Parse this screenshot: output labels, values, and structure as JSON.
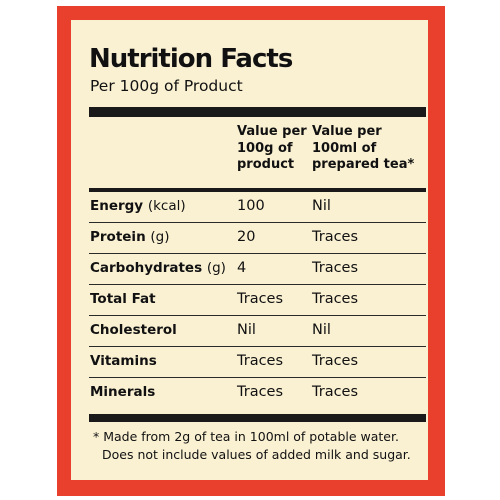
{
  "label": {
    "title": "Nutrition Facts",
    "subtitle": "Per 100g of Product",
    "columns": {
      "col1": [
        "Value per",
        "100g of",
        "product"
      ],
      "col2": [
        "Value per",
        "100ml of",
        "prepared tea*"
      ]
    },
    "rows": [
      {
        "name": "Energy",
        "unit": "(kcal)",
        "per_100g": "100",
        "per_100ml": "Nil"
      },
      {
        "name": "Protein",
        "unit": "(g)",
        "per_100g": "20",
        "per_100ml": "Traces"
      },
      {
        "name": "Carbohydrates",
        "unit": "(g)",
        "per_100g": "4",
        "per_100ml": "Traces"
      },
      {
        "name": "Total Fat",
        "unit": "",
        "per_100g": "Traces",
        "per_100ml": "Traces"
      },
      {
        "name": "Cholesterol",
        "unit": "",
        "per_100g": "Nil",
        "per_100ml": "Nil"
      },
      {
        "name": "Vitamins",
        "unit": "",
        "per_100g": "Traces",
        "per_100ml": "Traces"
      },
      {
        "name": "Minerals",
        "unit": "",
        "per_100g": "Traces",
        "per_100ml": "Traces"
      }
    ],
    "footnote": [
      "* Made from 2g of tea in 100ml of potable water.",
      "Does not include values of added milk and sugar."
    ]
  },
  "colors": {
    "frame": "#e8402c",
    "panel": "#faf1d3",
    "ink": "#111111"
  }
}
